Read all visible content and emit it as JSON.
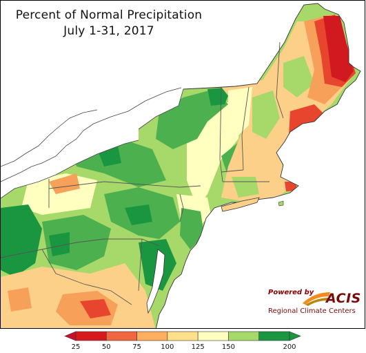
{
  "title": {
    "line1": "Percent of Normal Precipitation",
    "line2": "July 1-31, 2017"
  },
  "credit": {
    "powered_by": "Powered by",
    "acis": "ACIS",
    "centers": "Regional Climate Centers"
  },
  "legend": {
    "ticks": [
      "25",
      "50",
      "75",
      "100",
      "125",
      "150",
      "200"
    ],
    "bins": [
      {
        "color": "#d7191c"
      },
      {
        "color": "#f26541"
      },
      {
        "color": "#fdae61"
      },
      {
        "color": "#fee08b"
      },
      {
        "color": "#ffffbf"
      },
      {
        "color": "#a6d96a"
      },
      {
        "color": "#1a9641"
      }
    ],
    "low_arrow_color": "#c8102e",
    "high_arrow_color": "#1a9641"
  },
  "colors": {
    "very_wet": "#1a9641",
    "wet": "#4cb04e",
    "above": "#a6d96a",
    "near_normal": "#ffffbf",
    "below": "#fdd08a",
    "dry": "#f7a05a",
    "very_dry": "#e8452f",
    "extreme_dry": "#d11a1f",
    "water": "#ffffff",
    "borders": "#555555"
  }
}
